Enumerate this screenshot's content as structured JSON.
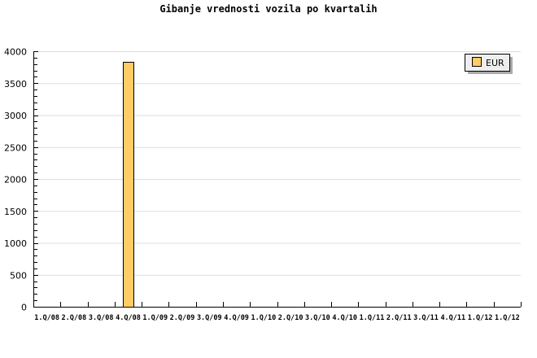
{
  "chart_data": {
    "type": "bar",
    "title": "Gibanje vrednosti vozila po kvartalih",
    "xlabel": "",
    "ylabel": "",
    "categories": [
      "1.Q/08",
      "2.Q/08",
      "3.Q/08",
      "4.Q/08",
      "1.Q/09",
      "2.Q/09",
      "3.Q/09",
      "4.Q/09",
      "1.Q/10",
      "2.Q/10",
      "3.Q/10",
      "4.Q/10",
      "1.Q/11",
      "2.Q/11",
      "3.Q/11",
      "4.Q/11",
      "1.Q/12",
      "1.Q/12"
    ],
    "series": [
      {
        "name": "EUR",
        "color": "#ffcc66",
        "values": [
          null,
          null,
          null,
          3830,
          null,
          null,
          null,
          null,
          null,
          null,
          null,
          null,
          null,
          null,
          null,
          null,
          null,
          null
        ]
      }
    ],
    "ylim": [
      0,
      4000
    ],
    "yticks": [
      0,
      500,
      1000,
      1500,
      2000,
      2500,
      3000,
      3500,
      4000
    ],
    "grid": true,
    "legend": "top-right"
  }
}
